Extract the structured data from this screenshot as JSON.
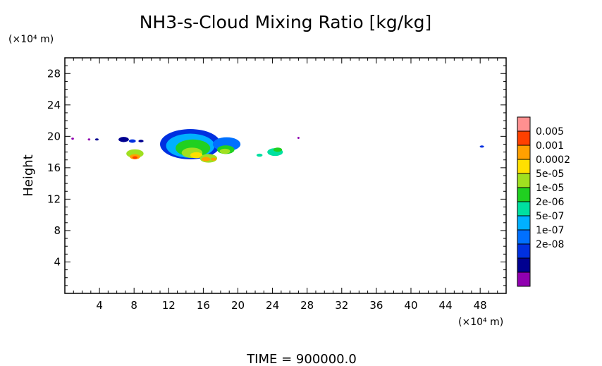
{
  "chart_data": {
    "type": "heatmap",
    "title": "NH3-s-Cloud Mixing Ratio [kg/kg]",
    "ylabel": "Height",
    "xlabel": "",
    "x_unit": "(×10⁴ m)",
    "y_unit": "(×10⁴ m)",
    "footer": "TIME = 900000.0",
    "xlim": [
      0,
      51
    ],
    "ylim": [
      0,
      30
    ],
    "x_ticks": [
      4,
      8,
      12,
      16,
      20,
      24,
      28,
      32,
      36,
      40,
      44,
      48
    ],
    "y_ticks": [
      4,
      8,
      12,
      16,
      20,
      24,
      28
    ],
    "grid": false,
    "legend": {
      "placement": "right",
      "labels": [
        "0.005",
        "0.001",
        "0.0002",
        "5e-05",
        "1e-05",
        "2e-06",
        "5e-07",
        "1e-07",
        "2e-08"
      ],
      "colors": [
        "#ff9090",
        "#ff4000",
        "#ffa000",
        "#ffe000",
        "#a0e020",
        "#20d020",
        "#00e0a0",
        "#00b0ff",
        "#0070ff",
        "#0030e0",
        "#000090",
        "#9000b0"
      ]
    },
    "cells": [
      {
        "x": 0.9,
        "y": 19.7,
        "r": 0.15,
        "level": 11
      },
      {
        "x": 2.8,
        "y": 19.6,
        "r": 0.15,
        "level": 11
      },
      {
        "x": 3.7,
        "y": 19.6,
        "r": 0.2,
        "level": 10
      },
      {
        "x": 6.8,
        "y": 19.6,
        "r": 0.6,
        "level": 10
      },
      {
        "x": 7.8,
        "y": 19.4,
        "r": 0.4,
        "level": 9
      },
      {
        "x": 8.8,
        "y": 19.4,
        "r": 0.3,
        "level": 10
      },
      {
        "x": 8.1,
        "y": 17.8,
        "r": 1.0,
        "level": 4
      },
      {
        "x": 8.1,
        "y": 17.4,
        "r": 0.6,
        "level": 2
      },
      {
        "x": 8.1,
        "y": 17.3,
        "r": 0.3,
        "level": 1
      },
      {
        "x": 14.5,
        "y": 19.0,
        "r": 3.5,
        "level": 9
      },
      {
        "x": 14.5,
        "y": 18.8,
        "r": 2.8,
        "level": 7
      },
      {
        "x": 14.8,
        "y": 18.5,
        "r": 2.0,
        "level": 5
      },
      {
        "x": 14.7,
        "y": 17.9,
        "r": 1.2,
        "level": 4
      },
      {
        "x": 15.2,
        "y": 17.6,
        "r": 0.7,
        "level": 3
      },
      {
        "x": 16.6,
        "y": 17.2,
        "r": 1.0,
        "level": 4
      },
      {
        "x": 16.3,
        "y": 17.1,
        "r": 0.5,
        "level": 2
      },
      {
        "x": 17.2,
        "y": 17.1,
        "r": 0.35,
        "level": 2
      },
      {
        "x": 18.7,
        "y": 19.0,
        "r": 1.6,
        "level": 8
      },
      {
        "x": 18.6,
        "y": 18.3,
        "r": 1.0,
        "level": 5
      },
      {
        "x": 18.5,
        "y": 18.1,
        "r": 0.6,
        "level": 4
      },
      {
        "x": 22.5,
        "y": 17.6,
        "r": 0.35,
        "level": 6
      },
      {
        "x": 24.3,
        "y": 18.0,
        "r": 0.9,
        "level": 6
      },
      {
        "x": 24.6,
        "y": 18.3,
        "r": 0.5,
        "level": 5
      },
      {
        "x": 27.0,
        "y": 19.8,
        "r": 0.12,
        "level": 11
      },
      {
        "x": 48.2,
        "y": 18.7,
        "r": 0.25,
        "level": 9
      }
    ]
  }
}
